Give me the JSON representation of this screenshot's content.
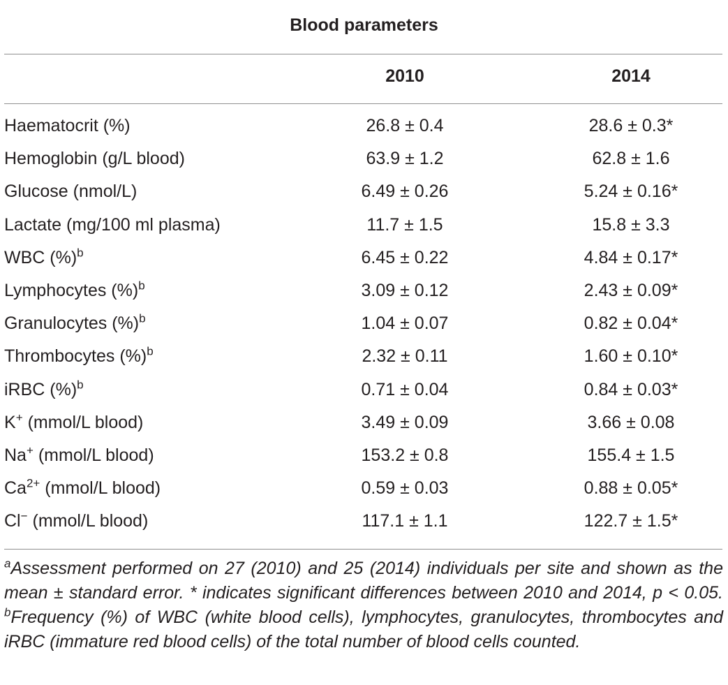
{
  "table": {
    "title": "Blood parameters",
    "columns": [
      "2010",
      "2014"
    ],
    "rows": [
      {
        "label": "Haematocrit (%)",
        "sup": "",
        "unit": "",
        "v2010": "26.8 ± 0.4",
        "v2014": "28.6 ± 0.3*"
      },
      {
        "label": "Hemoglobin (g/L blood)",
        "sup": "",
        "unit": "",
        "v2010": "63.9 ± 1.2",
        "v2014": "62.8 ± 1.6"
      },
      {
        "label": "Glucose (nmol/L)",
        "sup": "",
        "unit": "",
        "v2010": "6.49 ± 0.26",
        "v2014": "5.24 ± 0.16*"
      },
      {
        "label": "Lactate (mg/100 ml plasma)",
        "sup": "",
        "unit": "",
        "v2010": "11.7 ± 1.5",
        "v2014": "15.8 ± 3.3"
      },
      {
        "label": "WBC (%)",
        "sup": "b",
        "unit": "",
        "v2010": "6.45 ± 0.22",
        "v2014": "4.84 ± 0.17*"
      },
      {
        "label": "Lymphocytes (%)",
        "sup": "b",
        "unit": "",
        "v2010": "3.09 ± 0.12",
        "v2014": "2.43 ± 0.09*"
      },
      {
        "label": "Granulocytes (%)",
        "sup": "b",
        "unit": "",
        "v2010": "1.04 ± 0.07",
        "v2014": "0.82 ± 0.04*"
      },
      {
        "label": "Thrombocytes (%)",
        "sup": "b",
        "unit": "",
        "v2010": "2.32 ± 0.11",
        "v2014": "1.60 ± 0.10*"
      },
      {
        "label": "iRBC (%)",
        "sup": "b",
        "unit": "",
        "v2010": "0.71 ± 0.04",
        "v2014": "0.84 ± 0.03*"
      },
      {
        "label": "K",
        "sup": "+",
        "unit": " (mmol/L blood)",
        "v2010": "3.49 ± 0.09",
        "v2014": "3.66 ± 0.08"
      },
      {
        "label": "Na",
        "sup": "+",
        "unit": " (mmol/L blood)",
        "v2010": "153.2 ± 0.8",
        "v2014": "155.4 ± 1.5"
      },
      {
        "label": "Ca",
        "sup": "2+",
        "unit": " (mmol/L blood)",
        "v2010": "0.59 ± 0.03",
        "v2014": "0.88 ± 0.05*"
      },
      {
        "label": "Cl",
        "sup": "−",
        "unit": " (mmol/L blood)",
        "v2010": "117.1 ± 1.1",
        "v2014": "122.7 ± 1.5*"
      }
    ]
  },
  "footnote": {
    "a_mark": "a",
    "a_text": "Assessment performed on 27 (2010) and 25 (2014) individuals per site and shown as the mean ± standard error. * indicates significant differences between 2010 and 2014, p < 0.05. ",
    "b_mark": "b",
    "b_text": "Frequency (%) of WBC (white blood cells), lymphocytes, granulocytes, thrombocytes and iRBC (immature red blood cells) of the total number of blood cells counted."
  }
}
